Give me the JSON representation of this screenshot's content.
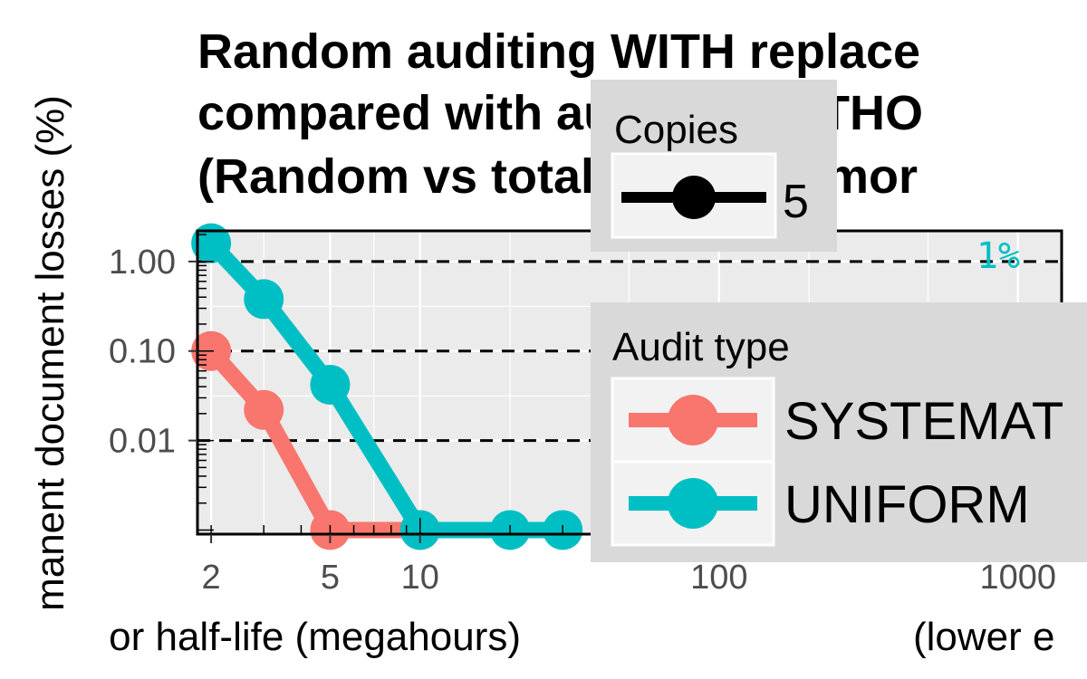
{
  "chart_data": {
    "type": "line",
    "title_lines": [
      "Random auditing WITH replace",
      "compared with auditing WITHO",
      "(Random vs total auditing, mor"
    ],
    "xlabel_left": "or half-life (megahours)",
    "xlabel_right": "(lower e",
    "ylabel": "manent document losses (%)",
    "x_scale": "log",
    "y_scale": "log",
    "xlim": [
      1.8,
      1400
    ],
    "ylim": [
      0.0009,
      2.2
    ],
    "x_ticks": [
      2,
      5,
      10,
      100,
      1000
    ],
    "x_tick_labels": [
      "2",
      "5",
      "10",
      "100",
      "1000"
    ],
    "y_ticks": [
      1.0,
      0.1,
      0.01
    ],
    "y_tick_labels": [
      "1.00",
      "0.10",
      "0.01"
    ],
    "reference_lines": [
      1.0,
      0.1,
      0.01
    ],
    "annotation": {
      "text": "1%",
      "x": 1000,
      "y": 1.0,
      "color": "#00BFC4"
    },
    "grid": true,
    "series": [
      {
        "name": "SYSTEMAT",
        "color": "#F8766D",
        "x": [
          2,
          3,
          5,
          10
        ],
        "y": [
          0.1,
          0.022,
          0.001,
          0.001
        ]
      },
      {
        "name": "UNIFORM",
        "color": "#00BFC4",
        "x": [
          2,
          3,
          5,
          10,
          20,
          30
        ],
        "y": [
          1.6,
          0.38,
          0.042,
          0.001,
          0.001,
          0.001
        ]
      }
    ],
    "legend_copies": {
      "title": "Copies",
      "value": "5"
    },
    "legend_audit": {
      "title": "Audit type",
      "entries": [
        "SYSTEMAT",
        "UNIFORM"
      ]
    }
  }
}
